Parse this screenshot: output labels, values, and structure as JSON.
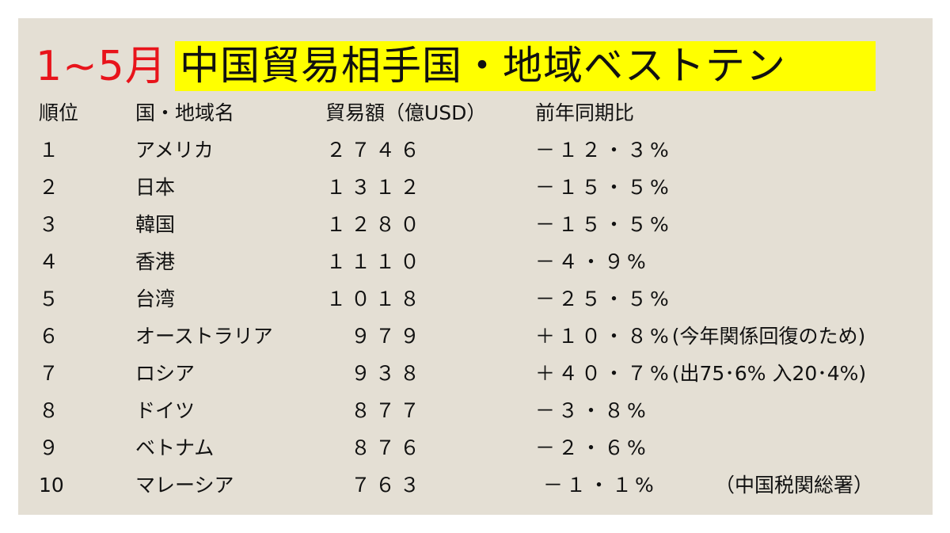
{
  "title": {
    "period": "1~5月",
    "main": "中国貿易相手国・地域ベストテン"
  },
  "headers": {
    "rank": "順位",
    "country": "国・地域名",
    "amount": "貿易額（億USD）",
    "change": "前年同期比"
  },
  "rows": [
    {
      "rank": "１",
      "country": "アメリカ",
      "amount": "２７４６",
      "change": "－１２・３%",
      "note": ""
    },
    {
      "rank": "２",
      "country": "日本",
      "amount": "１３１２",
      "change": "－１５・５%",
      "note": ""
    },
    {
      "rank": "３",
      "country": "韓国",
      "amount": "１２８０",
      "change": "－１５・５%",
      "note": ""
    },
    {
      "rank": "４",
      "country": "香港",
      "amount": "１１１０",
      "change": "－４・９%",
      "note": ""
    },
    {
      "rank": "５",
      "country": "台湾",
      "amount": "１０１８",
      "change": "－２５・５%",
      "note": ""
    },
    {
      "rank": "６",
      "country": "オーストラリア",
      "amount": "９７９",
      "change": "＋１０・８%",
      "note": "(今年関係回復のため)"
    },
    {
      "rank": "７",
      "country": "ロシア",
      "amount": "９３８",
      "change": "＋４０・７%",
      "note": "(出75･6% 入20･4%)"
    },
    {
      "rank": "８",
      "country": "ドイツ",
      "amount": "８７７",
      "change": "－３・８%",
      "note": ""
    },
    {
      "rank": "９",
      "country": "ベトナム",
      "amount": "８７６",
      "change": "－２・６%",
      "note": ""
    },
    {
      "rank": "10",
      "country": "マレーシア",
      "amount": "７６３",
      "change": "－１・１%",
      "note": ""
    }
  ],
  "source": "（中国税関総署）"
}
